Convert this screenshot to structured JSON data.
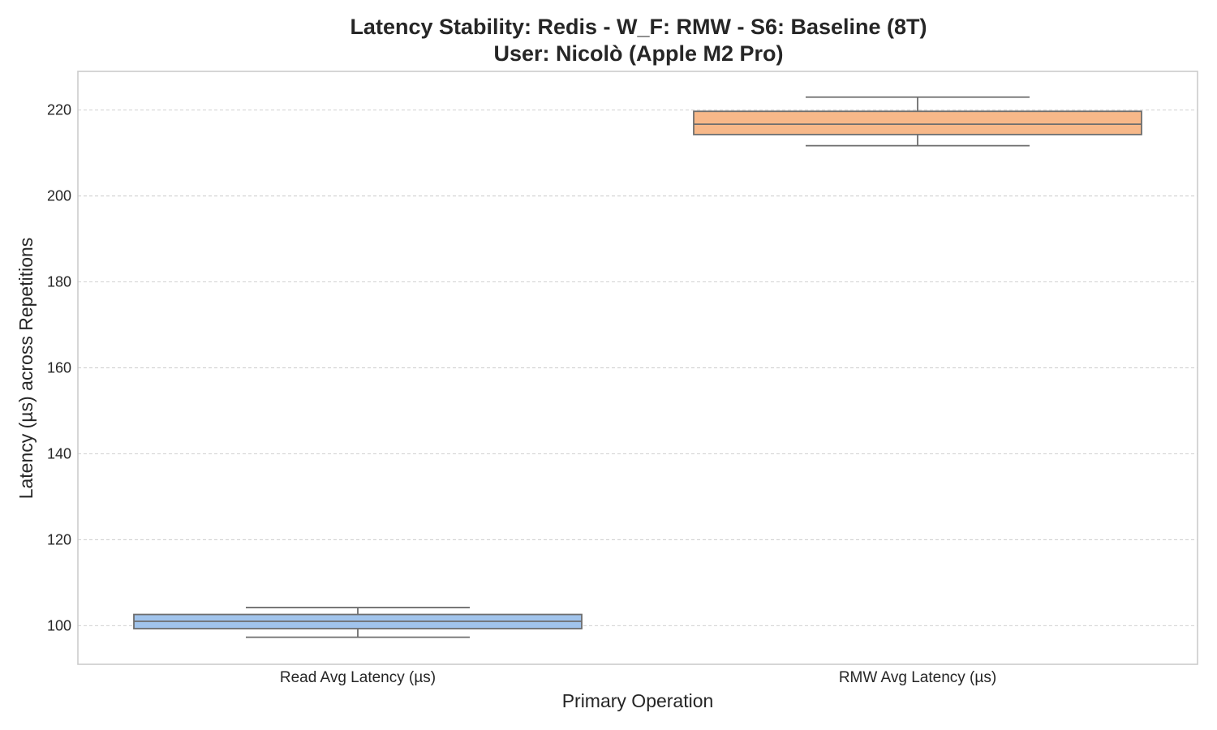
{
  "title": {
    "line1": "Latency Stability: Redis - W_F: RMW - S6: Baseline (8T)",
    "line2": "User: Nicolò (Apple M2 Pro)"
  },
  "chart_data": {
    "type": "box",
    "title": "Latency Stability: Redis - W_F: RMW - S6: Baseline (8T)\nUser: Nicolò (Apple M2 Pro)",
    "xlabel": "Primary Operation",
    "ylabel": "Latency (µs) across Repetitions",
    "ylim": [
      91,
      229
    ],
    "yticks": [
      100,
      120,
      140,
      160,
      180,
      200,
      220
    ],
    "grid": "horizontal dashed",
    "categories": [
      "Read Avg Latency (µs)",
      "RMW Avg Latency (µs)"
    ],
    "boxes": [
      {
        "category": "Read Avg Latency (µs)",
        "whisker_low": 97.3,
        "q1": 99.3,
        "median": 101.0,
        "q3": 102.6,
        "whisker_high": 104.2,
        "color": "#a1c4ec"
      },
      {
        "category": "RMW Avg Latency (µs)",
        "whisker_low": 211.7,
        "q1": 214.3,
        "median": 216.7,
        "q3": 219.7,
        "whisker_high": 223.0,
        "color": "#f7b889"
      }
    ]
  }
}
